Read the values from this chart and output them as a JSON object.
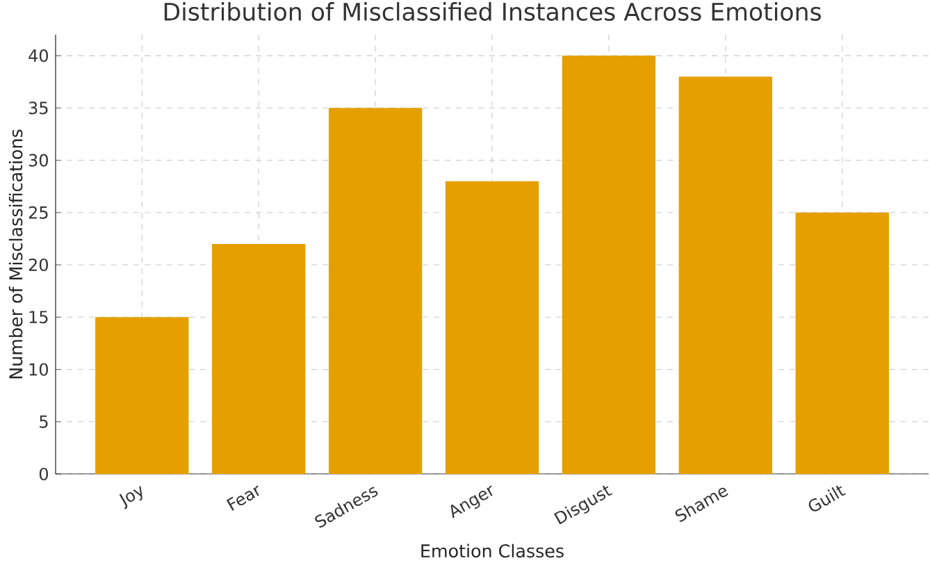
{
  "chart_data": {
    "type": "bar",
    "title": "Distribution of Misclassified Instances Across Emotions",
    "xlabel": "Emotion Classes",
    "ylabel": "Number of Misclassifications",
    "categories": [
      "Joy",
      "Fear",
      "Sadness",
      "Anger",
      "Disgust",
      "Shame",
      "Guilt"
    ],
    "values": [
      15,
      22,
      35,
      28,
      40,
      38,
      25
    ],
    "color": "#e5a000",
    "ylim": [
      0,
      42
    ],
    "yticks": [
      0,
      5,
      10,
      15,
      20,
      25,
      30,
      35,
      40
    ],
    "grid": true
  }
}
